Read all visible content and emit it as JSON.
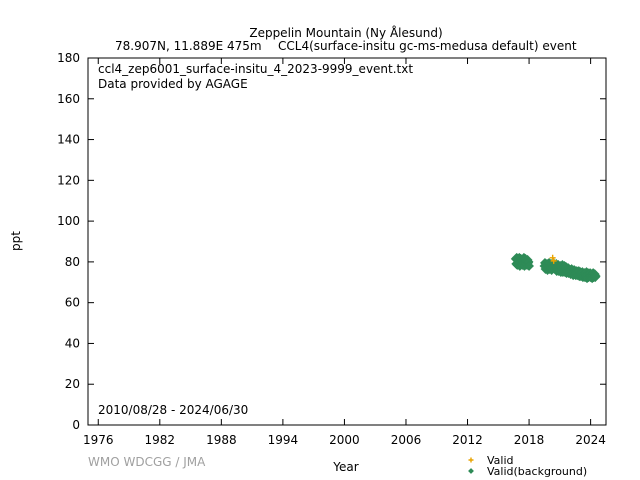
{
  "chart_data": {
    "type": "scatter",
    "title": "Zeppelin Mountain (Ny Ålesund)",
    "subtitle_left": "78.907N, 11.889E 475m",
    "subtitle_right": "CCL4(surface-insitu gc-ms-medusa default) event",
    "file_label": "ccl4_zep6001_surface-insitu_4_2023-9999_event.txt",
    "provider_label": "Data provided by AGAGE",
    "date_range_label": "2010/08/28 - 2024/06/30",
    "watermark": "WMO WDCGG / JMA",
    "xlabel": "Year",
    "ylabel": "ppt",
    "xlim": [
      1975,
      2025.5
    ],
    "ylim": [
      0,
      180
    ],
    "x_ticks": [
      1976,
      1982,
      1988,
      1994,
      2000,
      2006,
      2012,
      2018,
      2024
    ],
    "y_ticks": [
      0,
      20,
      40,
      60,
      80,
      100,
      120,
      140,
      160,
      180
    ],
    "grid": false,
    "legend_position": "bottom-right",
    "series": [
      {
        "name": "Valid",
        "color": "#e8a300",
        "marker": "plus",
        "points": [
          [
            2020.3,
            82.0
          ],
          [
            2020.4,
            80.5
          ]
        ]
      },
      {
        "name": "Valid(background)",
        "color": "#2e8b57",
        "marker": "diamond",
        "points": [
          [
            2016.7,
            81.5
          ],
          [
            2016.75,
            79.0
          ],
          [
            2016.8,
            82.0
          ],
          [
            2016.85,
            78.5
          ],
          [
            2016.9,
            80.5
          ],
          [
            2016.95,
            81.0
          ],
          [
            2017.0,
            79.5
          ],
          [
            2017.05,
            82.0
          ],
          [
            2017.1,
            78.0
          ],
          [
            2017.15,
            80.0
          ],
          [
            2017.2,
            81.5
          ],
          [
            2017.25,
            79.0
          ],
          [
            2017.3,
            80.5
          ],
          [
            2017.35,
            78.5
          ],
          [
            2017.4,
            81.0
          ],
          [
            2017.45,
            79.5
          ],
          [
            2017.5,
            82.0
          ],
          [
            2017.55,
            78.0
          ],
          [
            2017.6,
            80.0
          ],
          [
            2017.65,
            81.5
          ],
          [
            2017.7,
            79.0
          ],
          [
            2017.75,
            80.5
          ],
          [
            2017.8,
            78.5
          ],
          [
            2017.85,
            81.0
          ],
          [
            2017.9,
            79.5
          ],
          [
            2017.95,
            80.0
          ],
          [
            2018.0,
            78.0
          ],
          [
            2019.5,
            78.0
          ],
          [
            2019.55,
            79.5
          ],
          [
            2019.6,
            76.5
          ],
          [
            2019.65,
            78.5
          ],
          [
            2019.7,
            77.0
          ],
          [
            2019.75,
            79.0
          ],
          [
            2019.8,
            76.0
          ],
          [
            2019.85,
            78.0
          ],
          [
            2019.9,
            77.5
          ],
          [
            2019.95,
            79.5
          ],
          [
            2020.0,
            76.5
          ],
          [
            2020.05,
            78.0
          ],
          [
            2020.1,
            77.0
          ],
          [
            2020.15,
            79.0
          ],
          [
            2020.2,
            76.0
          ],
          [
            2020.25,
            78.5
          ],
          [
            2020.35,
            77.5
          ],
          [
            2020.45,
            79.0
          ],
          [
            2020.5,
            76.5
          ],
          [
            2020.55,
            78.0
          ],
          [
            2020.6,
            77.0
          ],
          [
            2020.65,
            79.0
          ],
          [
            2020.7,
            75.5
          ],
          [
            2020.75,
            77.5
          ],
          [
            2020.8,
            76.5
          ],
          [
            2020.85,
            78.5
          ],
          [
            2020.9,
            75.5
          ],
          [
            2020.95,
            77.0
          ],
          [
            2021.0,
            76.0
          ],
          [
            2021.05,
            78.0
          ],
          [
            2021.1,
            75.0
          ],
          [
            2021.15,
            77.0
          ],
          [
            2021.2,
            76.5
          ],
          [
            2021.25,
            78.5
          ],
          [
            2021.3,
            75.0
          ],
          [
            2021.35,
            77.5
          ],
          [
            2021.4,
            76.0
          ],
          [
            2021.45,
            78.0
          ],
          [
            2021.5,
            75.0
          ],
          [
            2021.55,
            76.5
          ],
          [
            2021.6,
            77.5
          ],
          [
            2021.65,
            74.5
          ],
          [
            2021.7,
            76.0
          ],
          [
            2021.75,
            75.5
          ],
          [
            2021.8,
            77.0
          ],
          [
            2021.85,
            74.5
          ],
          [
            2021.9,
            76.5
          ],
          [
            2021.95,
            75.0
          ],
          [
            2022.0,
            76.0
          ],
          [
            2022.05,
            74.0
          ],
          [
            2022.1,
            75.5
          ],
          [
            2022.15,
            76.5
          ],
          [
            2022.2,
            74.5
          ],
          [
            2022.25,
            75.5
          ],
          [
            2022.3,
            73.5
          ],
          [
            2022.35,
            75.0
          ],
          [
            2022.4,
            76.0
          ],
          [
            2022.45,
            74.0
          ],
          [
            2022.5,
            75.5
          ],
          [
            2022.55,
            73.5
          ],
          [
            2022.6,
            74.5
          ],
          [
            2022.65,
            75.5
          ],
          [
            2022.7,
            73.5
          ],
          [
            2022.75,
            75.0
          ],
          [
            2022.8,
            74.0
          ],
          [
            2022.85,
            75.5
          ],
          [
            2022.9,
            73.0
          ],
          [
            2022.95,
            74.5
          ],
          [
            2023.0,
            75.0
          ],
          [
            2023.05,
            73.0
          ],
          [
            2023.1,
            74.5
          ],
          [
            2023.15,
            73.5
          ],
          [
            2023.2,
            75.0
          ],
          [
            2023.25,
            72.5
          ],
          [
            2023.3,
            74.0
          ],
          [
            2023.35,
            73.0
          ],
          [
            2023.4,
            74.5
          ],
          [
            2023.45,
            72.5
          ],
          [
            2023.5,
            74.0
          ],
          [
            2023.55,
            73.0
          ],
          [
            2023.6,
            75.0
          ],
          [
            2023.65,
            72.0
          ],
          [
            2023.7,
            73.5
          ],
          [
            2023.75,
            74.5
          ],
          [
            2023.8,
            72.5
          ],
          [
            2023.85,
            74.0
          ],
          [
            2023.9,
            73.0
          ],
          [
            2023.95,
            74.5
          ],
          [
            2024.0,
            72.5
          ],
          [
            2024.05,
            73.5
          ],
          [
            2024.1,
            74.0
          ],
          [
            2024.15,
            72.0
          ],
          [
            2024.2,
            73.5
          ],
          [
            2024.25,
            74.5
          ],
          [
            2024.3,
            72.5
          ],
          [
            2024.35,
            73.5
          ],
          [
            2024.4,
            74.0
          ],
          [
            2024.45,
            72.5
          ],
          [
            2024.5,
            73.0
          ]
        ]
      }
    ]
  }
}
